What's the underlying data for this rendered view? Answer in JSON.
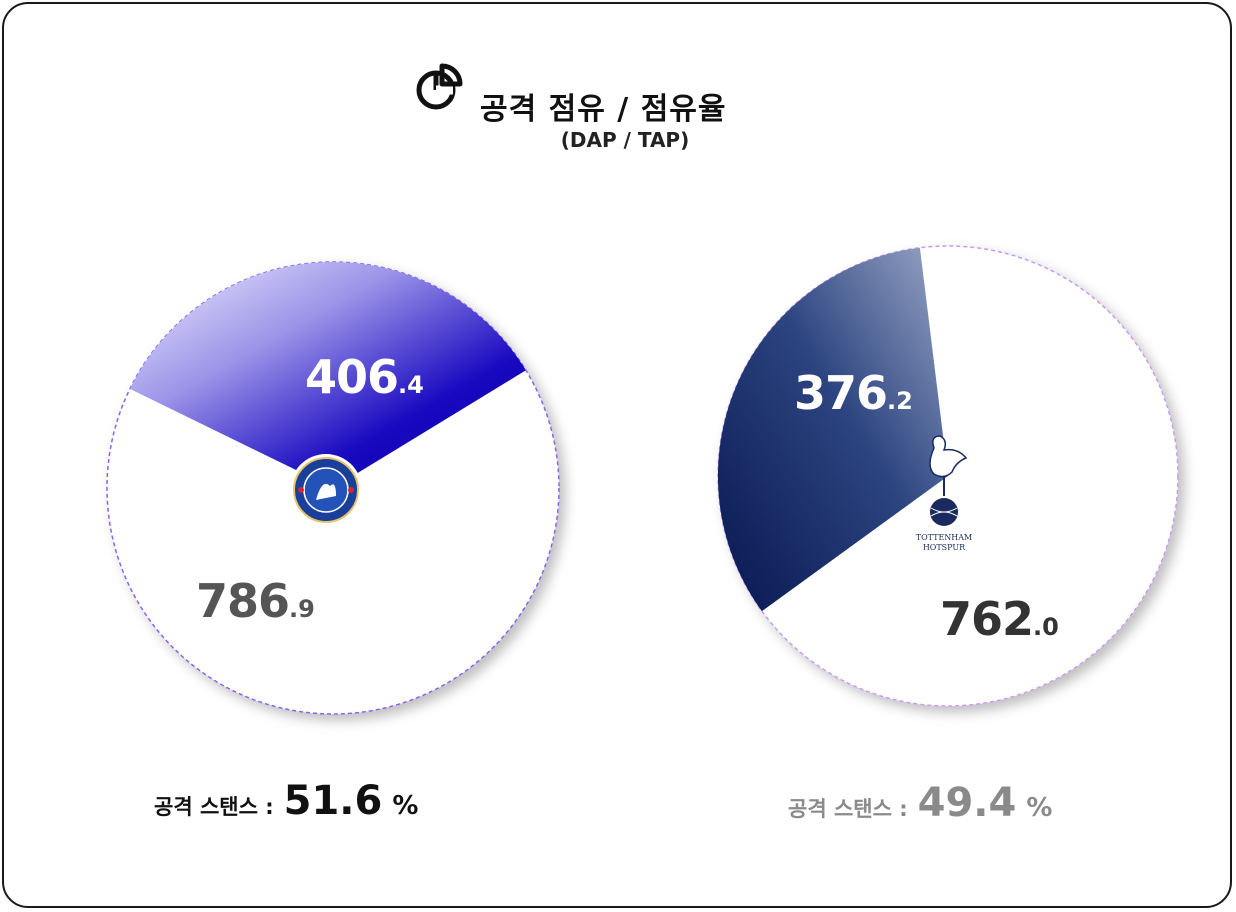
{
  "title": "공격 점유 / 점유율",
  "subtitle": "(DAP / TAP)",
  "icon": "pie-chart-icon",
  "chart_data": [
    {
      "type": "pie",
      "team_logo": "chelsea-crest",
      "slices": [
        {
          "value": 406.4,
          "int_label": "406",
          "dec_label": ".4",
          "color": "#0c00b8"
        },
        {
          "value": 786.9,
          "int_label": "786",
          "dec_label": ".9",
          "color": "#ffffff"
        }
      ],
      "stance_label": "공격 스탠스 :",
      "stance_value": "51.6",
      "stance_unit": "%"
    },
    {
      "type": "pie",
      "team_logo": "tottenham-crest",
      "logo_text": [
        "TOTTENHAM",
        "HOTSPUR"
      ],
      "slices": [
        {
          "value": 376.2,
          "int_label": "376",
          "dec_label": ".2",
          "color": "#0b1d5c"
        },
        {
          "value": 762.0,
          "int_label": "762",
          "dec_label": ".0",
          "color": "#ffffff"
        }
      ],
      "stance_label": "공격 스탠스 :",
      "stance_value": "49.4",
      "stance_unit": "%"
    }
  ]
}
